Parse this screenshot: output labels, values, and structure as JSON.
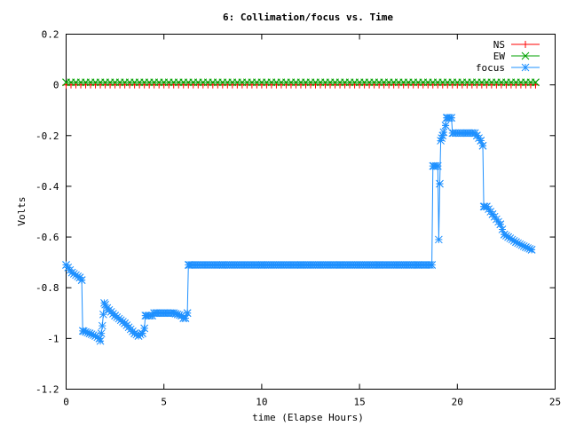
{
  "chart_data": {
    "type": "line",
    "title": "6: Collimation/focus vs. Time",
    "xlabel": "time (Elapse Hours)",
    "ylabel": "Volts",
    "xlim": [
      0,
      25
    ],
    "ylim": [
      -1.2,
      0.2
    ],
    "xticks": [
      "0",
      "5",
      "10",
      "15",
      "20",
      "25"
    ],
    "yticks": [
      "0.2",
      "0",
      "-0.2",
      "-0.4",
      "-0.6",
      "-0.8",
      "-1",
      "-1.2"
    ],
    "grid": false,
    "legend_position": "top-right",
    "series": [
      {
        "name": "NS",
        "color": "#ff0000",
        "marker": "plus",
        "x": [
          0,
          24
        ],
        "y": [
          0,
          0
        ],
        "marker_step": 0.25
      },
      {
        "name": "EW",
        "color": "#00a000",
        "marker": "cross",
        "x": [
          0,
          24
        ],
        "y": [
          0.01,
          0.01
        ],
        "marker_step": 0.25
      },
      {
        "name": "focus",
        "color": "#1e90ff",
        "marker": "star",
        "marker_step": 0.1,
        "x": [
          0,
          0.3,
          0.7,
          0.8,
          0.85,
          1.2,
          1.5,
          1.7,
          1.75,
          1.85,
          1.95,
          2.1,
          2.5,
          3.0,
          3.5,
          3.7,
          3.9,
          4.0,
          4.05,
          4.4,
          4.5,
          4.6,
          5.0,
          5.5,
          5.9,
          6.0,
          6.1,
          6.2,
          6.25,
          6.3,
          8.0,
          10.0,
          12.0,
          14.0,
          16.0,
          18.0,
          18.7,
          18.75,
          18.8,
          19.0,
          19.05,
          19.1,
          19.15,
          19.25,
          19.4,
          19.45,
          19.5,
          19.7,
          19.75,
          20.5,
          20.9,
          21.0,
          21.2,
          21.3,
          21.35,
          21.5,
          21.8,
          22.2,
          22.4,
          22.6,
          23.0,
          23.5,
          23.8
        ],
        "y": [
          -0.71,
          -0.74,
          -0.76,
          -0.77,
          -0.97,
          -0.98,
          -0.99,
          -1.0,
          -1.01,
          -0.95,
          -0.86,
          -0.88,
          -0.91,
          -0.94,
          -0.98,
          -0.99,
          -0.98,
          -0.96,
          -0.91,
          -0.91,
          -0.9,
          -0.9,
          -0.9,
          -0.9,
          -0.91,
          -0.92,
          -0.92,
          -0.9,
          -0.71,
          -0.71,
          -0.71,
          -0.71,
          -0.71,
          -0.71,
          -0.71,
          -0.71,
          -0.71,
          -0.32,
          -0.32,
          -0.32,
          -0.61,
          -0.39,
          -0.22,
          -0.2,
          -0.16,
          -0.13,
          -0.13,
          -0.13,
          -0.19,
          -0.19,
          -0.19,
          -0.2,
          -0.22,
          -0.24,
          -0.48,
          -0.48,
          -0.51,
          -0.55,
          -0.59,
          -0.6,
          -0.62,
          -0.64,
          -0.65
        ]
      }
    ]
  }
}
